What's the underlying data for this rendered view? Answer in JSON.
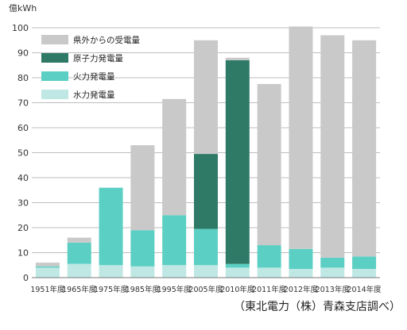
{
  "chart_data": {
    "type": "bar",
    "stacked": true,
    "unit_label": "億kWh",
    "categories": [
      "1951年度",
      "1965年度",
      "1975年度",
      "1985年度",
      "1995年度",
      "2005年度",
      "2010年度",
      "2011年度",
      "2012年度",
      "2013年度",
      "2014年度"
    ],
    "ylim": [
      0,
      100
    ],
    "yticks": [
      0,
      10,
      20,
      30,
      40,
      50,
      60,
      70,
      80,
      90,
      100
    ],
    "grid": true,
    "legend_position": "top-left",
    "series": [
      {
        "name": "水力発電量",
        "color": "#bfe8e4",
        "values": [
          4,
          5.5,
          5,
          4.5,
          5,
          5,
          4,
          4,
          3.5,
          4,
          3.5
        ]
      },
      {
        "name": "火力発電量",
        "color": "#5ccfc4",
        "values": [
          0.5,
          8.5,
          31,
          14.5,
          20,
          14.5,
          1.5,
          9,
          8,
          4,
          5
        ]
      },
      {
        "name": "原子力発電量",
        "color": "#2e7a66",
        "values": [
          0,
          0,
          0,
          0,
          0,
          30,
          81.5,
          0,
          0,
          0,
          0
        ]
      },
      {
        "name": "県外からの受電量",
        "color": "#c9c9c9",
        "values": [
          1.5,
          2,
          0,
          34,
          46.5,
          45.5,
          1,
          64.5,
          89,
          89,
          86.5
        ]
      }
    ]
  },
  "legend_order": [
    3,
    2,
    1,
    0
  ],
  "source": "（東北電力（株）青森支店調べ）"
}
